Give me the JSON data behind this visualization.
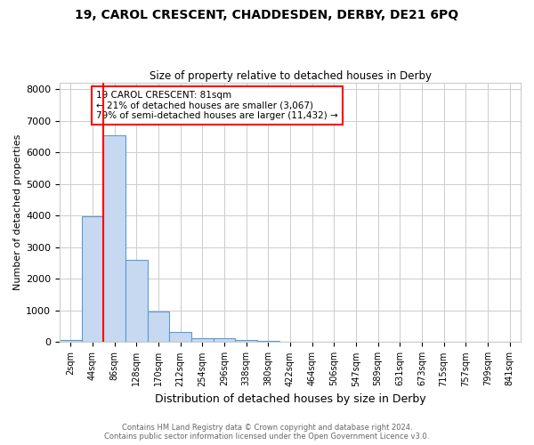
{
  "title_line1": "19, CAROL CRESCENT, CHADDESDEN, DERBY, DE21 6PQ",
  "title_line2": "Size of property relative to detached houses in Derby",
  "xlabel": "Distribution of detached houses by size in Derby",
  "ylabel": "Number of detached properties",
  "categories": [
    "2sqm",
    "44sqm",
    "86sqm",
    "128sqm",
    "170sqm",
    "212sqm",
    "254sqm",
    "296sqm",
    "338sqm",
    "380sqm",
    "422sqm",
    "464sqm",
    "506sqm",
    "547sqm",
    "589sqm",
    "631sqm",
    "673sqm",
    "715sqm",
    "757sqm",
    "799sqm",
    "841sqm"
  ],
  "values": [
    80,
    3980,
    6550,
    2600,
    970,
    320,
    130,
    120,
    70,
    50,
    0,
    0,
    0,
    0,
    0,
    0,
    0,
    0,
    0,
    0,
    0
  ],
  "bar_color": "#c6d9f1",
  "bar_edge_color": "#5b9bd5",
  "red_line_index": 2,
  "annotation_text": "19 CAROL CRESCENT: 81sqm\n← 21% of detached houses are smaller (3,067)\n79% of semi-detached houses are larger (11,432) →",
  "annotation_box_color": "white",
  "annotation_box_edge_color": "red",
  "red_line_color": "red",
  "ylim": [
    0,
    8200
  ],
  "yticks": [
    0,
    1000,
    2000,
    3000,
    4000,
    5000,
    6000,
    7000,
    8000
  ],
  "footer_line1": "Contains HM Land Registry data © Crown copyright and database right 2024.",
  "footer_line2": "Contains public sector information licensed under the Open Government Licence v3.0.",
  "background_color": "white",
  "grid_color": "#cccccc"
}
